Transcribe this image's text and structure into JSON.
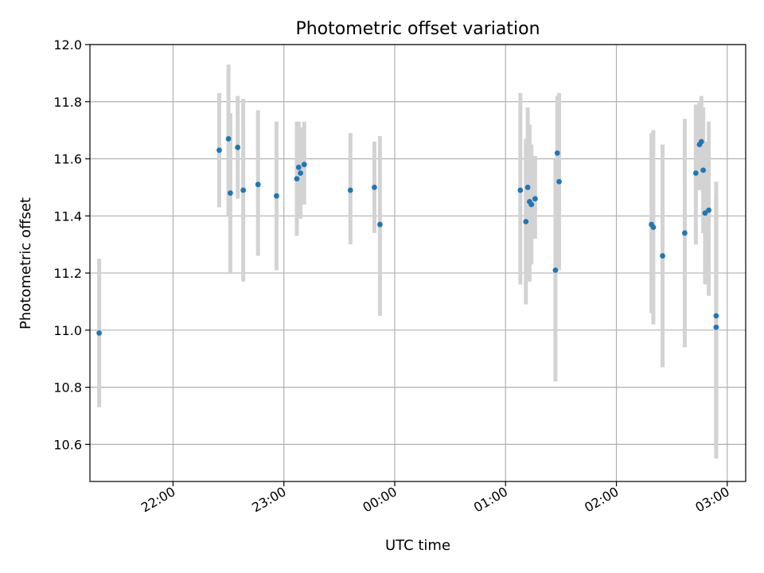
{
  "chart_data": {
    "type": "scatter",
    "title": "Photometric offset variation",
    "xlabel": "UTC time",
    "ylabel": "Photometric offset",
    "xlim": [
      "21:15",
      "03:10"
    ],
    "ylim": [
      10.47,
      12.0
    ],
    "grid": true,
    "legend": "none",
    "error_bars": true,
    "colors": {
      "points": "#1f77b4",
      "error_bars": "#d3d3d3",
      "grid": "#b0b0b0"
    },
    "x_ticks": [
      "22:00",
      "23:00",
      "00:00",
      "01:00",
      "02:00",
      "03:00"
    ],
    "y_ticks": [
      "10.6",
      "10.8",
      "11.0",
      "11.2",
      "11.4",
      "11.6",
      "11.8",
      "12.0"
    ],
    "points": [
      {
        "t": "21:20",
        "y": 10.99,
        "lo": 10.73,
        "hi": 11.25
      },
      {
        "t": "22:25",
        "y": 11.63,
        "lo": 11.43,
        "hi": 11.83
      },
      {
        "t": "22:30",
        "y": 11.67,
        "lo": 11.4,
        "hi": 11.93
      },
      {
        "t": "22:31",
        "y": 11.48,
        "lo": 11.2,
        "hi": 11.76
      },
      {
        "t": "22:35",
        "y": 11.64,
        "lo": 11.46,
        "hi": 11.82
      },
      {
        "t": "22:38",
        "y": 11.49,
        "lo": 11.17,
        "hi": 11.81
      },
      {
        "t": "22:46",
        "y": 11.51,
        "lo": 11.26,
        "hi": 11.77
      },
      {
        "t": "22:56",
        "y": 11.47,
        "lo": 11.21,
        "hi": 11.73
      },
      {
        "t": "23:07",
        "y": 11.53,
        "lo": 11.33,
        "hi": 11.73
      },
      {
        "t": "23:08",
        "y": 11.57,
        "lo": 11.41,
        "hi": 11.73
      },
      {
        "t": "23:09",
        "y": 11.55,
        "lo": 11.39,
        "hi": 11.71
      },
      {
        "t": "23:11",
        "y": 11.58,
        "lo": 11.44,
        "hi": 11.73
      },
      {
        "t": "23:36",
        "y": 11.49,
        "lo": 11.3,
        "hi": 11.69
      },
      {
        "t": "23:49",
        "y": 11.5,
        "lo": 11.34,
        "hi": 11.66
      },
      {
        "t": "23:52",
        "y": 11.37,
        "lo": 11.05,
        "hi": 11.68
      },
      {
        "t": "01:08",
        "y": 11.49,
        "lo": 11.16,
        "hi": 11.83
      },
      {
        "t": "01:11",
        "y": 11.38,
        "lo": 11.09,
        "hi": 11.67
      },
      {
        "t": "01:12",
        "y": 11.5,
        "lo": 11.22,
        "hi": 11.78
      },
      {
        "t": "01:13",
        "y": 11.45,
        "lo": 11.17,
        "hi": 11.72
      },
      {
        "t": "01:14",
        "y": 11.44,
        "lo": 11.23,
        "hi": 11.65
      },
      {
        "t": "01:16",
        "y": 11.46,
        "lo": 11.32,
        "hi": 11.61
      },
      {
        "t": "01:27",
        "y": 11.21,
        "lo": 10.82,
        "hi": 11.6
      },
      {
        "t": "01:28",
        "y": 11.62,
        "lo": 11.4,
        "hi": 11.82
      },
      {
        "t": "01:29",
        "y": 11.52,
        "lo": 11.21,
        "hi": 11.83
      },
      {
        "t": "02:19",
        "y": 11.37,
        "lo": 11.06,
        "hi": 11.69
      },
      {
        "t": "02:20",
        "y": 11.36,
        "lo": 11.02,
        "hi": 11.7
      },
      {
        "t": "02:25",
        "y": 11.26,
        "lo": 10.87,
        "hi": 11.65
      },
      {
        "t": "02:37",
        "y": 11.34,
        "lo": 10.94,
        "hi": 11.74
      },
      {
        "t": "02:43",
        "y": 11.55,
        "lo": 11.3,
        "hi": 11.79
      },
      {
        "t": "02:45",
        "y": 11.65,
        "lo": 11.49,
        "hi": 11.8
      },
      {
        "t": "02:46",
        "y": 11.66,
        "lo": 11.49,
        "hi": 11.82
      },
      {
        "t": "02:47",
        "y": 11.56,
        "lo": 11.34,
        "hi": 11.78
      },
      {
        "t": "02:48",
        "y": 11.41,
        "lo": 11.16,
        "hi": 11.66
      },
      {
        "t": "02:50",
        "y": 11.42,
        "lo": 11.12,
        "hi": 11.73
      },
      {
        "t": "02:54",
        "y": 11.05,
        "lo": 10.59,
        "hi": 11.52
      },
      {
        "t": "02:54",
        "y": 11.01,
        "lo": 10.55,
        "hi": 11.47
      }
    ]
  }
}
